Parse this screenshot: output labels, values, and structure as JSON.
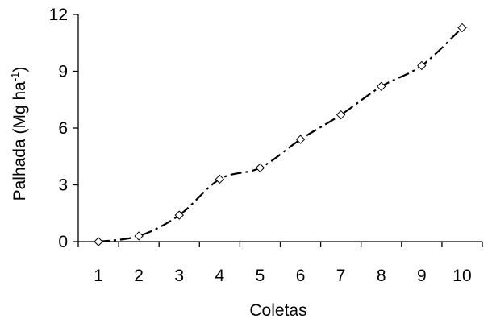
{
  "chart_data": {
    "type": "line",
    "x": [
      1,
      2,
      3,
      4,
      5,
      6,
      7,
      8,
      9,
      10
    ],
    "series": [
      {
        "values": [
          0.0,
          0.3,
          1.4,
          3.3,
          3.9,
          5.4,
          6.7,
          8.2,
          9.3,
          11.3
        ]
      }
    ],
    "xlabel": "Coletas",
    "ylabel": "Palhada (Mg ha",
    "ylabel_superscript": "-1",
    "ylabel_suffix": ")",
    "x_ticks": [
      "1",
      "2",
      "3",
      "4",
      "5",
      "6",
      "7",
      "8",
      "9",
      "10"
    ],
    "y_ticks": [
      "0",
      "3",
      "6",
      "9",
      "12"
    ],
    "y_tick_values": [
      0,
      3,
      6,
      9,
      12
    ],
    "ylim": [
      0,
      12
    ],
    "grid": false,
    "legend": "none",
    "marker": "diamond",
    "line_style": "dash-dot",
    "line_color": "#000000",
    "marker_fill": "#ffffff"
  }
}
